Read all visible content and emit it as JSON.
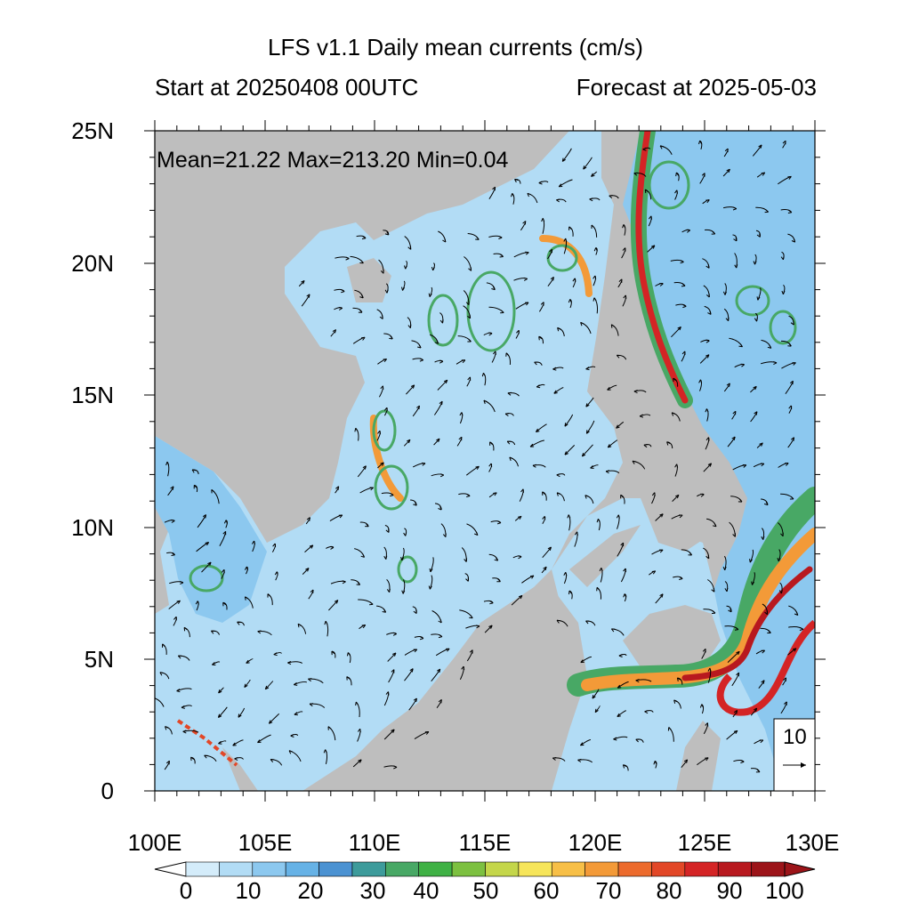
{
  "header": {
    "title": "LFS v1.1 Daily mean currents (cm/s)",
    "start_label": "Start at 20250408 00UTC",
    "forecast_label": "Forecast at 2025-05-03"
  },
  "stats": "Mean=21.22  Max=213.20  Min=0.04",
  "axes": {
    "lon_labels": [
      "100E",
      "105E",
      "110E",
      "115E",
      "120E",
      "125E",
      "130E"
    ],
    "lat_labels": [
      "25N",
      "20N",
      "15N",
      "10N",
      "5N",
      "0"
    ]
  },
  "reference_vector": {
    "label": "10"
  },
  "colorbar": {
    "labels": [
      "0",
      "10",
      "20",
      "30",
      "40",
      "50",
      "60",
      "70",
      "80",
      "90",
      "100"
    ],
    "colors": [
      "#ffffff",
      "#d4ecfa",
      "#b2dcf5",
      "#8cc8ef",
      "#66b2e6",
      "#4b92d2",
      "#3d9b9b",
      "#48a865",
      "#3fb145",
      "#7cc040",
      "#c4d64a",
      "#f6e55a",
      "#f7bf47",
      "#f39a38",
      "#ec6b2d",
      "#e24727",
      "#d42425",
      "#b8191f",
      "#9c1419"
    ]
  },
  "colors": {
    "land": "#bebebe",
    "ocean_low": "#d4ecfa",
    "ocean_mid": "#8cc8ef",
    "ocean_high": "#66b2e6"
  }
}
